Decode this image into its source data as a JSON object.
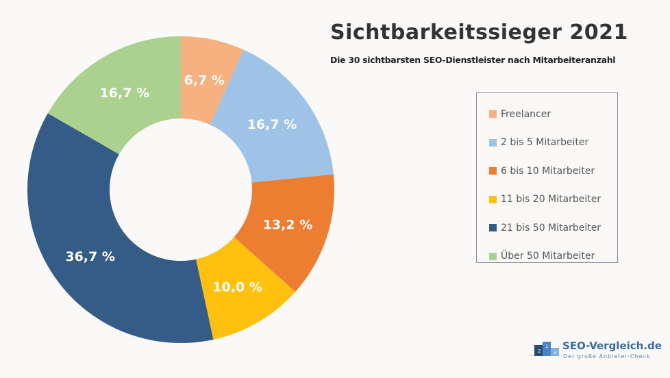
{
  "header": {
    "title": "Sichtbarkeitssieger 2021",
    "subtitle": "Die 30 sichtbarsten SEO-Dienstleister nach Mitarbeiteranzahl"
  },
  "logo": {
    "name": "SEO-Vergleich.de",
    "tagline": "Der große Anbieter-Check"
  },
  "chart_data": {
    "type": "pie",
    "variant": "donut",
    "title": "Sichtbarkeitssieger 2021",
    "legend_position": "right",
    "categories": [
      "Freelancer",
      "2 bis 5 Mitarbeiter",
      "6 bis 10 Mitarbeiter",
      "11 bis 20 Mitarbeiter",
      "21 bis 50 Mitarbeiter",
      "Über 50 Mitarbeiter"
    ],
    "values": [
      6.7,
      16.7,
      13.2,
      10.0,
      36.7,
      16.7
    ],
    "labels": [
      "6,7 %",
      "16,7 %",
      "13,2 %",
      "10,0 %",
      "36,7 %",
      "16,7 %"
    ],
    "colors": [
      "#f7b07f",
      "#9fc3e7",
      "#ed7d31",
      "#ffc010",
      "#355c86",
      "#aad18e"
    ],
    "unit": "%"
  }
}
